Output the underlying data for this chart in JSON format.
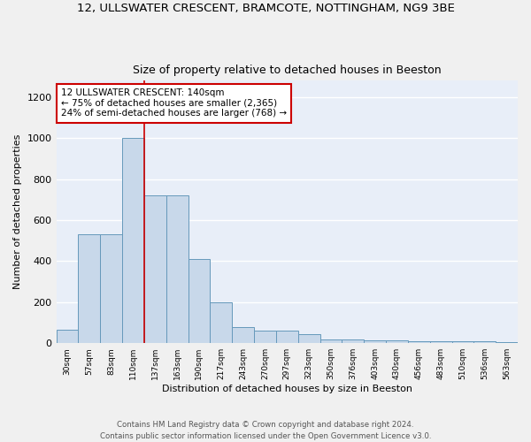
{
  "title": "12, ULLSWATER CRESCENT, BRAMCOTE, NOTTINGHAM, NG9 3BE",
  "subtitle": "Size of property relative to detached houses in Beeston",
  "xlabel": "Distribution of detached houses by size in Beeston",
  "ylabel": "Number of detached properties",
  "bar_color": "#c8d8ea",
  "bar_edge_color": "#6699bb",
  "categories": [
    "30sqm",
    "57sqm",
    "83sqm",
    "110sqm",
    "137sqm",
    "163sqm",
    "190sqm",
    "217sqm",
    "243sqm",
    "270sqm",
    "297sqm",
    "323sqm",
    "350sqm",
    "376sqm",
    "403sqm",
    "430sqm",
    "456sqm",
    "483sqm",
    "510sqm",
    "536sqm",
    "563sqm"
  ],
  "values": [
    65,
    530,
    530,
    1000,
    720,
    720,
    410,
    200,
    80,
    60,
    60,
    45,
    18,
    18,
    15,
    15,
    10,
    10,
    8,
    8,
    5
  ],
  "annotation_text": "12 ULLSWATER CRESCENT: 140sqm\n← 75% of detached houses are smaller (2,365)\n24% of semi-detached houses are larger (768) →",
  "annotation_box_color": "#ffffff",
  "annotation_border_color": "#cc0000",
  "red_line_x": 4.0,
  "ylim": [
    0,
    1280
  ],
  "yticks": [
    0,
    200,
    400,
    600,
    800,
    1000,
    1200
  ],
  "background_color": "#e8eef8",
  "grid_color": "#ffffff",
  "footer": "Contains HM Land Registry data © Crown copyright and database right 2024.\nContains public sector information licensed under the Open Government Licence v3.0."
}
